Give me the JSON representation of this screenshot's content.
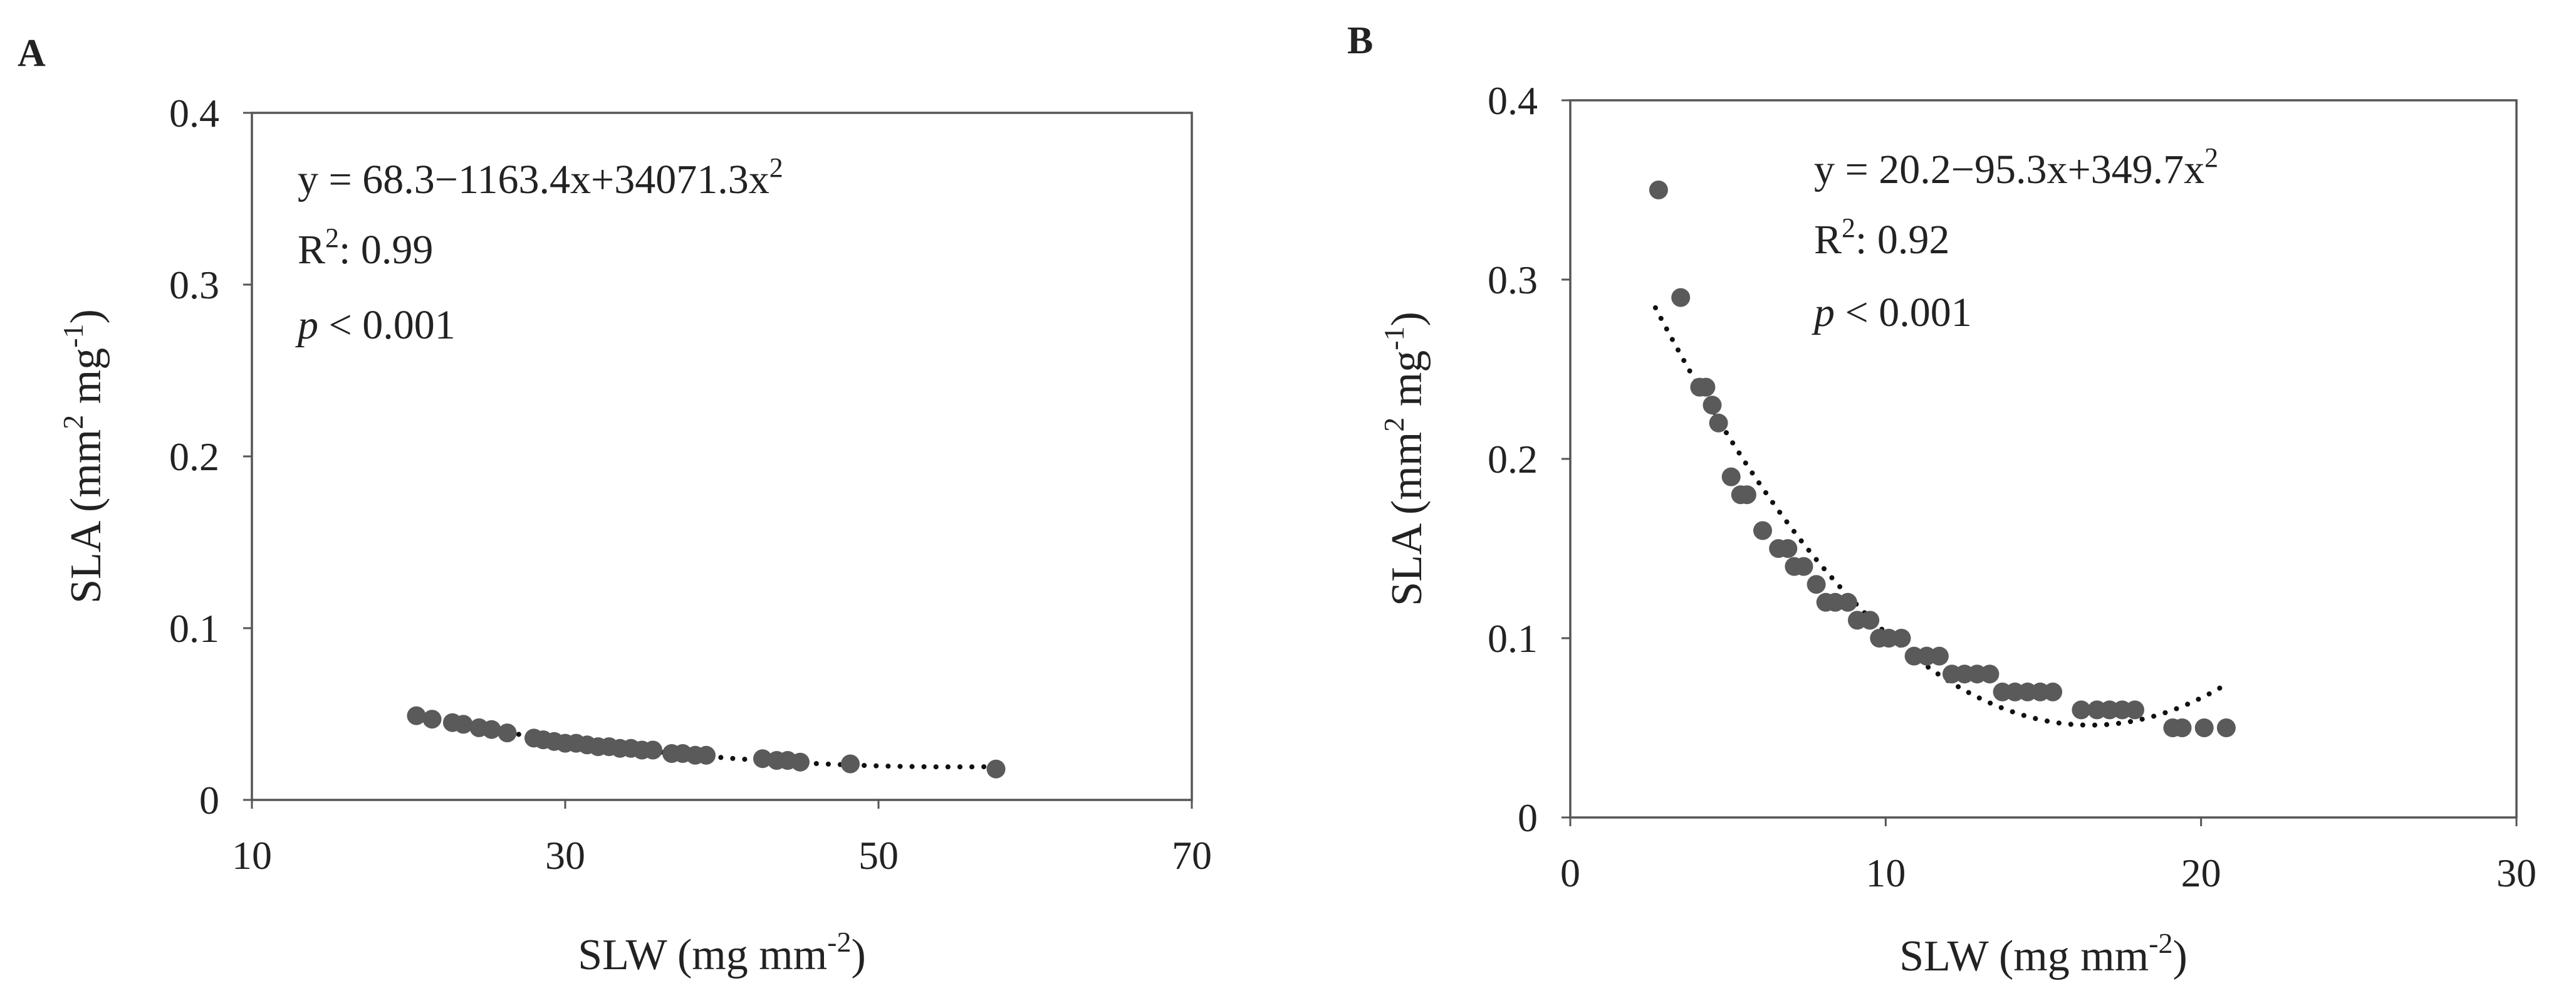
{
  "chart_data": [
    {
      "panel": "A",
      "type": "scatter",
      "xlabel": "SLW (mg mm",
      "xlabel_sup": "-2",
      "xlabel_end": ")",
      "ylabel": "SLA (mm",
      "ylabel_sup1": "2",
      "ylabel_mid": " mg",
      "ylabel_sup2": "-1",
      "ylabel_end": ")",
      "xlim": [
        10,
        70
      ],
      "ylim": [
        0,
        0.4
      ],
      "xticks": [
        10,
        30,
        50,
        70
      ],
      "yticks": [
        0,
        0.1,
        0.2,
        0.3,
        0.4
      ],
      "annotations": {
        "equation": "y = 68.3−1163.4x+34071.3x",
        "equation_sup": "2",
        "r2_label": "R",
        "r2_sup": "2",
        "r2_value": ": 0.99",
        "p_symbol": "p",
        "p_value": " < 0.001"
      },
      "marker_color": "#5a5a5a",
      "trendline": {
        "type": "dotted",
        "color": "#111111",
        "x_range": [
          21,
          58
        ],
        "y_start": 0.046,
        "y_end": 0.019
      },
      "series": [
        {
          "x": [
            20.5,
            21.5,
            22.8,
            23.5,
            24.5,
            25.3,
            26.3,
            28.0,
            28.6,
            29.3,
            30.0,
            30.7,
            31.4,
            32.1,
            32.8,
            33.5,
            34.2,
            34.9,
            35.6,
            36.8,
            37.5,
            38.3,
            39.0,
            42.6,
            43.5,
            44.2,
            45.0,
            48.2,
            57.5
          ],
          "y": [
            0.049,
            0.047,
            0.045,
            0.044,
            0.042,
            0.041,
            0.039,
            0.036,
            0.035,
            0.034,
            0.033,
            0.033,
            0.032,
            0.031,
            0.031,
            0.03,
            0.03,
            0.029,
            0.029,
            0.027,
            0.027,
            0.026,
            0.026,
            0.024,
            0.023,
            0.023,
            0.022,
            0.021,
            0.018
          ]
        }
      ]
    },
    {
      "panel": "B",
      "type": "scatter",
      "xlabel": "SLW (mg mm",
      "xlabel_sup": "-2",
      "xlabel_end": ")",
      "ylabel": "SLA (mm",
      "ylabel_sup1": "2",
      "ylabel_mid": " mg",
      "ylabel_sup2": "-1",
      "ylabel_end": ")",
      "xlim": [
        0,
        30
      ],
      "ylim": [
        0,
        0.4
      ],
      "xticks": [
        0,
        10,
        20,
        30
      ],
      "yticks": [
        0,
        0.1,
        0.2,
        0.3,
        0.4
      ],
      "annotations": {
        "equation": "y = 20.2−95.3x+349.7x",
        "equation_sup": "2",
        "r2_label": "R",
        "r2_sup": "2",
        "r2_value": ": 0.92",
        "p_symbol": "p",
        "p_value": " < 0.001"
      },
      "marker_color": "#5a5a5a",
      "trendline": {
        "type": "dotted",
        "color": "#111111",
        "x_range": [
          2.7,
          20.7
        ]
      },
      "series": [
        {
          "x": [
            2.8,
            3.5,
            4.1,
            4.3,
            4.5,
            4.7,
            5.1,
            5.4,
            5.6,
            6.1,
            6.6,
            6.9,
            7.1,
            7.4,
            7.8,
            8.1,
            8.4,
            8.8,
            9.1,
            9.5,
            9.8,
            10.1,
            10.5,
            10.9,
            11.3,
            11.7,
            12.1,
            12.5,
            12.9,
            13.3,
            13.7,
            14.1,
            14.5,
            14.9,
            15.3,
            16.2,
            16.7,
            17.1,
            17.5,
            17.9,
            19.1,
            19.4,
            20.1,
            20.8
          ],
          "y": [
            0.35,
            0.29,
            0.24,
            0.24,
            0.23,
            0.22,
            0.19,
            0.18,
            0.18,
            0.16,
            0.15,
            0.15,
            0.14,
            0.14,
            0.13,
            0.12,
            0.12,
            0.12,
            0.11,
            0.11,
            0.1,
            0.1,
            0.1,
            0.09,
            0.09,
            0.09,
            0.08,
            0.08,
            0.08,
            0.08,
            0.07,
            0.07,
            0.07,
            0.07,
            0.07,
            0.06,
            0.06,
            0.06,
            0.06,
            0.06,
            0.05,
            0.05,
            0.05,
            0.05
          ]
        }
      ]
    }
  ]
}
